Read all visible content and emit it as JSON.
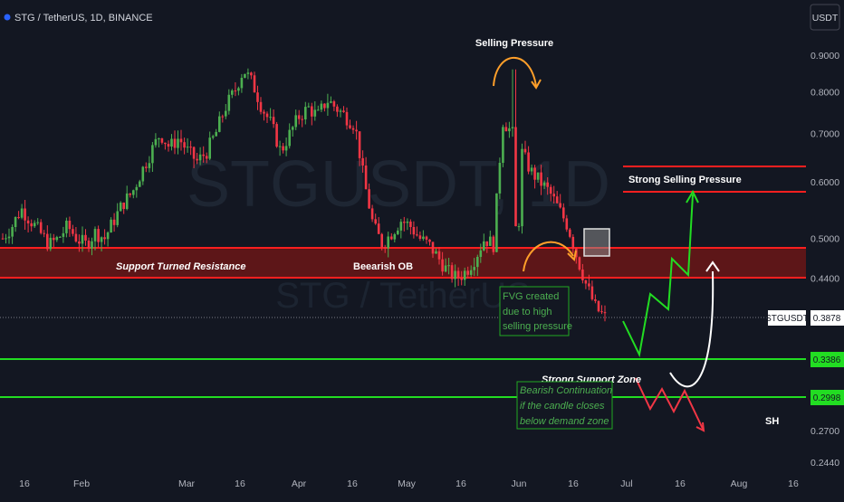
{
  "header": {
    "symbol_line": "STG / TetherUS, 1D, BINANCE",
    "currency_button": "USDT"
  },
  "watermark": {
    "big": "STGUSDT, 1D",
    "small": "STG / TetherUS"
  },
  "annotations": {
    "selling_pressure": "Selling Pressure",
    "strong_selling_pressure": "Strong Selling Pressure",
    "support_turned_resistance": "Support Turned Resistance",
    "bearish_ob": "Beearish OB",
    "fvg_line1": "FVG created",
    "fvg_line2": "due to high",
    "fvg_line3": "selling pressure",
    "strong_support_zone": "Strong Support Zone",
    "bearish_line1": "Bearish Continuation",
    "bearish_line2": "if the candle closes",
    "bearish_line3": "below demand zone",
    "sh": "SH"
  },
  "price_tags": {
    "symbol": "STGUSDT",
    "last": "0.3878",
    "support1": "0.3386",
    "support2": "0.2998"
  },
  "colors": {
    "background": "#131722",
    "up": "#4caf50",
    "down": "#f23645",
    "zone_fill": "#6b1616",
    "red_line": "#ff1f1f",
    "green_line": "#22dd22",
    "orange": "#ff9f2a",
    "axis_text": "#b2b5be"
  },
  "chart_data": {
    "type": "candlestick",
    "scale": "log",
    "y_ticks": [
      0.9,
      0.8,
      0.7,
      0.6,
      0.5,
      0.44,
      0.27,
      0.244
    ],
    "y_tick_labels": [
      "0.9000",
      "0.8000",
      "0.7000",
      "0.6000",
      "0.5000",
      "0.4400",
      "0.2700",
      "0.2440"
    ],
    "x_tick_labels": [
      "16",
      "Feb",
      "Mar",
      "16",
      "Apr",
      "16",
      "May",
      "16",
      "Jun",
      "16",
      "Jul",
      "16",
      "Aug",
      "16"
    ],
    "levels": {
      "strong_selling_pressure_top": 0.625,
      "strong_selling_pressure_bottom": 0.585,
      "resistance_zone_top": 0.483,
      "resistance_zone_bottom": 0.43,
      "last_price": 0.3878,
      "support_1": 0.3386,
      "support_2": 0.2998
    },
    "close_path": [
      0.5,
      0.52,
      0.55,
      0.53,
      0.51,
      0.49,
      0.5,
      0.52,
      0.5,
      0.49,
      0.51,
      0.5,
      0.53,
      0.56,
      0.58,
      0.62,
      0.66,
      0.7,
      0.67,
      0.69,
      0.66,
      0.64,
      0.66,
      0.7,
      0.76,
      0.8,
      0.86,
      0.82,
      0.76,
      0.72,
      0.66,
      0.7,
      0.74,
      0.76,
      0.74,
      0.78,
      0.76,
      0.74,
      0.72,
      0.6,
      0.52,
      0.49,
      0.51,
      0.53,
      0.52,
      0.5,
      0.49,
      0.47,
      0.45,
      0.44,
      0.45,
      0.47,
      0.5,
      0.49,
      0.73,
      0.7,
      0.66,
      0.62,
      0.6,
      0.58,
      0.55,
      0.52,
      0.47,
      0.43,
      0.4,
      0.388
    ]
  }
}
